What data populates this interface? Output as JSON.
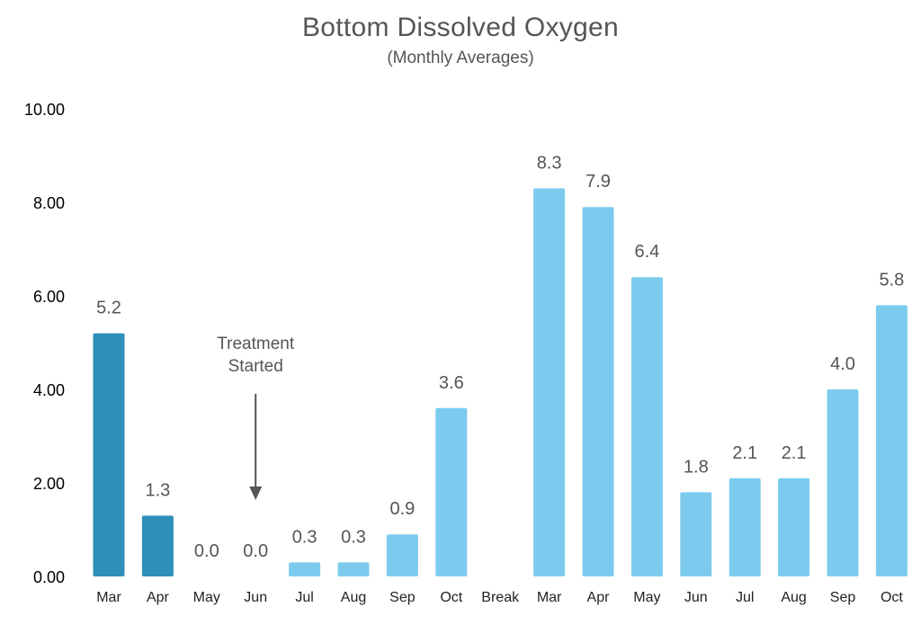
{
  "chart_data": {
    "type": "bar",
    "title": "Bottom Dissolved Oxygen",
    "subtitle": "(Monthly Averages)",
    "xlabel": "",
    "ylabel": "",
    "ylim": [
      0,
      10
    ],
    "y_ticks": [
      "0.00",
      "2.00",
      "4.00",
      "6.00",
      "8.00",
      "10.00"
    ],
    "grid": false,
    "categories": [
      "Mar",
      "Apr",
      "May",
      "Jun",
      "Jul",
      "Aug",
      "Sep",
      "Oct",
      "Break",
      "Mar",
      "Apr",
      "May",
      "Jun",
      "Jul",
      "Aug",
      "Sep",
      "Oct"
    ],
    "values": [
      5.2,
      1.3,
      0.0,
      0.0,
      0.3,
      0.3,
      0.9,
      3.6,
      null,
      8.3,
      7.9,
      6.4,
      1.8,
      2.1,
      2.1,
      4.0,
      5.8
    ],
    "data_labels": [
      "5.2",
      "1.3",
      "0.0",
      "0.0",
      "0.3",
      "0.3",
      "0.9",
      "3.6",
      "",
      "8.3",
      "7.9",
      "6.4",
      "1.8",
      "2.1",
      "2.1",
      "4.0",
      "5.8"
    ],
    "bar_colors": [
      "#2e8fb7",
      "#2e8fb7",
      "#7ccbee",
      "#7ccbee",
      "#7ccbee",
      "#7ccbee",
      "#7ccbee",
      "#7ccbee",
      "#7ccbee",
      "#7ccbee",
      "#7ccbee",
      "#7ccbee",
      "#7ccbee",
      "#7ccbee",
      "#7ccbee",
      "#7ccbee",
      "#7ccbee"
    ],
    "annotation": {
      "lines": [
        "Treatment",
        "Started"
      ],
      "category_index": 3,
      "color": "#555555"
    }
  }
}
